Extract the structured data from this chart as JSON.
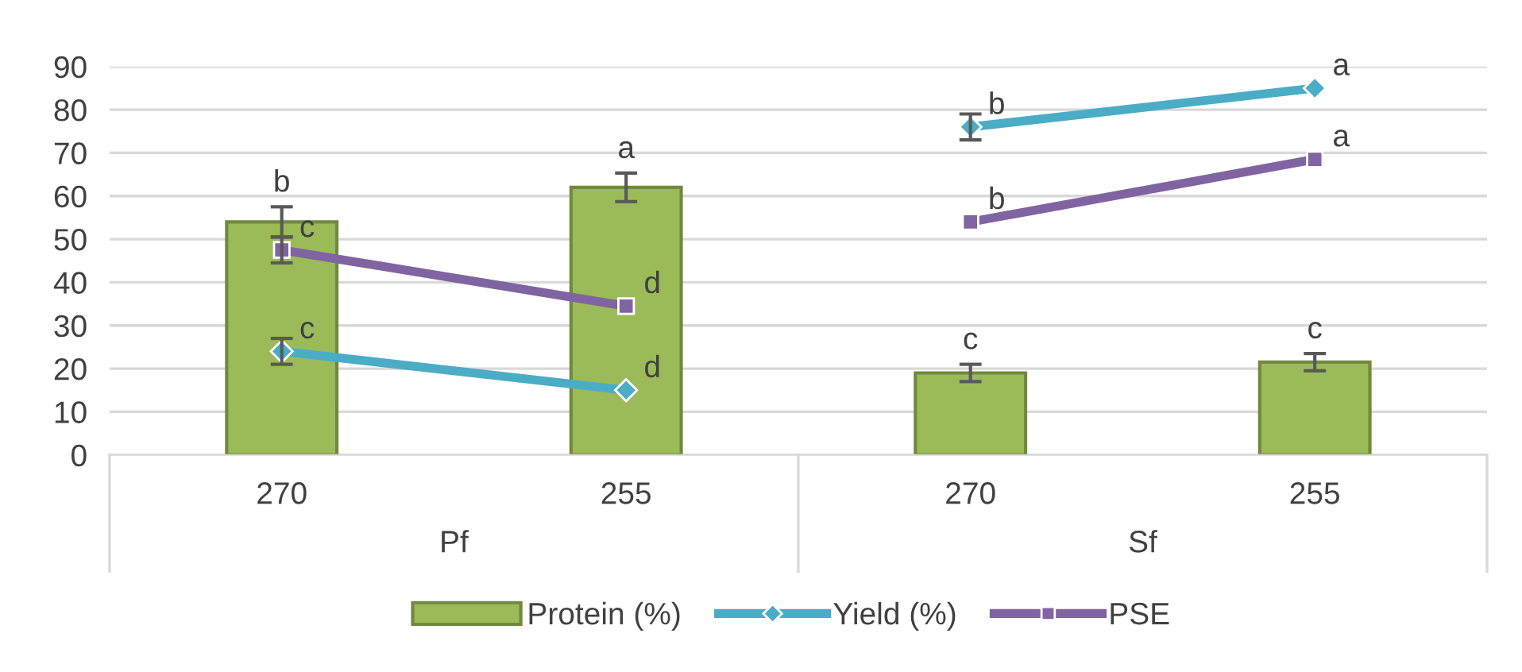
{
  "chart_data": {
    "type": "bar",
    "categories": [
      "270",
      "255",
      "270",
      "255"
    ],
    "annotations": [
      "Pf",
      "Sf"
    ],
    "series": [
      {
        "name": "Protein (%)",
        "color": "#9bbb59",
        "values": [
          54,
          62,
          19,
          21.5
        ],
        "errors": [
          3.5,
          3.3,
          2,
          2
        ],
        "value_labels": [
          "b",
          "a",
          "c",
          "c"
        ]
      },
      {
        "name": "Yield (%)",
        "type": "line",
        "color": "#4bacc6",
        "marker": "diamond",
        "values": [
          24,
          15,
          null,
          null
        ],
        "errors": [
          3,
          null,
          null,
          null
        ],
        "value_labels": [
          "c",
          "d",
          null,
          null
        ]
      },
      {
        "type": "line",
        "color": "#4bacc6",
        "marker": "diamond",
        "values": [
          null,
          null,
          76,
          85
        ],
        "errors": [
          null,
          null,
          3,
          null
        ],
        "value_labels": [
          null,
          null,
          "b",
          "a"
        ]
      },
      {
        "name": "PSE",
        "type": "line",
        "color": "#8064a2",
        "marker": "square",
        "values": [
          47.5,
          34.5,
          null,
          null
        ],
        "errors": [
          3,
          null,
          null,
          null
        ],
        "value_labels": [
          "c",
          "d",
          null,
          null
        ]
      },
      {
        "type": "line",
        "color": "#8064a2",
        "marker": "square",
        "values": [
          null,
          null,
          54,
          68.5
        ],
        "value_labels": [
          null,
          null,
          "b",
          "a"
        ]
      }
    ],
    "ylim": [
      0,
      90
    ],
    "yticks": [
      0,
      10,
      20,
      30,
      40,
      50,
      60,
      70,
      80,
      90
    ],
    "grid": "y",
    "legend": "bottom"
  }
}
